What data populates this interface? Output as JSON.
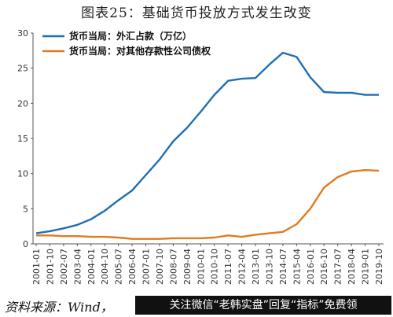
{
  "title": "图表25：基础货币投放方式发生改变",
  "source_text": "资料来源：Wind，",
  "banner_text": "关注微信“老韩实盘”回复“指标”免费领",
  "chart_data": {
    "type": "line",
    "title": "图表25：基础货币投放方式发生改变",
    "xlabel": "",
    "ylabel": "",
    "ylim": [
      0,
      30
    ],
    "yticks": [
      0,
      5,
      10,
      15,
      20,
      25,
      30
    ],
    "grid": false,
    "legend_position": "top-left",
    "x_ticks": [
      "2001-01",
      "2001-10",
      "2002-07",
      "2003-04",
      "2004-01",
      "2004-10",
      "2005-07",
      "2006-04",
      "2007-01",
      "2007-10",
      "2008-07",
      "2009-04",
      "2010-01",
      "2010-10",
      "2011-07",
      "2012-04",
      "2013-01",
      "2013-10",
      "2014-07",
      "2015-04",
      "2016-01",
      "2016-10",
      "2017-07",
      "2018-04",
      "2019-01",
      "2019-10"
    ],
    "series": [
      {
        "name": "货币当局：外汇占款（万亿）",
        "color": "#1f6eb3",
        "x": [
          "2001-01",
          "2001-10",
          "2002-07",
          "2003-04",
          "2004-01",
          "2004-10",
          "2005-07",
          "2006-04",
          "2007-01",
          "2007-10",
          "2008-07",
          "2009-04",
          "2010-01",
          "2010-10",
          "2011-07",
          "2012-04",
          "2013-01",
          "2013-10",
          "2014-07",
          "2015-04",
          "2016-01",
          "2016-10",
          "2017-07",
          "2018-04",
          "2019-01",
          "2019-10"
        ],
        "values": [
          1.5,
          1.8,
          2.2,
          2.7,
          3.5,
          4.7,
          6.2,
          7.6,
          9.8,
          12.0,
          14.6,
          16.5,
          18.8,
          21.2,
          23.2,
          23.5,
          23.6,
          25.5,
          27.2,
          26.6,
          23.7,
          21.6,
          21.5,
          21.5,
          21.2,
          21.2
        ]
      },
      {
        "name": "货币当局：对其他存款性公司债权",
        "color": "#e07b20",
        "x": [
          "2001-01",
          "2001-10",
          "2002-07",
          "2003-04",
          "2004-01",
          "2004-10",
          "2005-07",
          "2006-04",
          "2007-01",
          "2007-10",
          "2008-07",
          "2009-04",
          "2010-01",
          "2010-10",
          "2011-07",
          "2012-04",
          "2013-01",
          "2013-10",
          "2014-07",
          "2015-04",
          "2016-01",
          "2016-10",
          "2017-07",
          "2018-04",
          "2019-01",
          "2019-10"
        ],
        "values": [
          1.2,
          1.2,
          1.1,
          1.1,
          1.0,
          1.0,
          0.9,
          0.7,
          0.7,
          0.7,
          0.8,
          0.8,
          0.8,
          0.9,
          1.2,
          1.0,
          1.3,
          1.5,
          1.7,
          2.8,
          5.0,
          8.0,
          9.5,
          10.3,
          10.5,
          10.4
        ]
      }
    ]
  }
}
